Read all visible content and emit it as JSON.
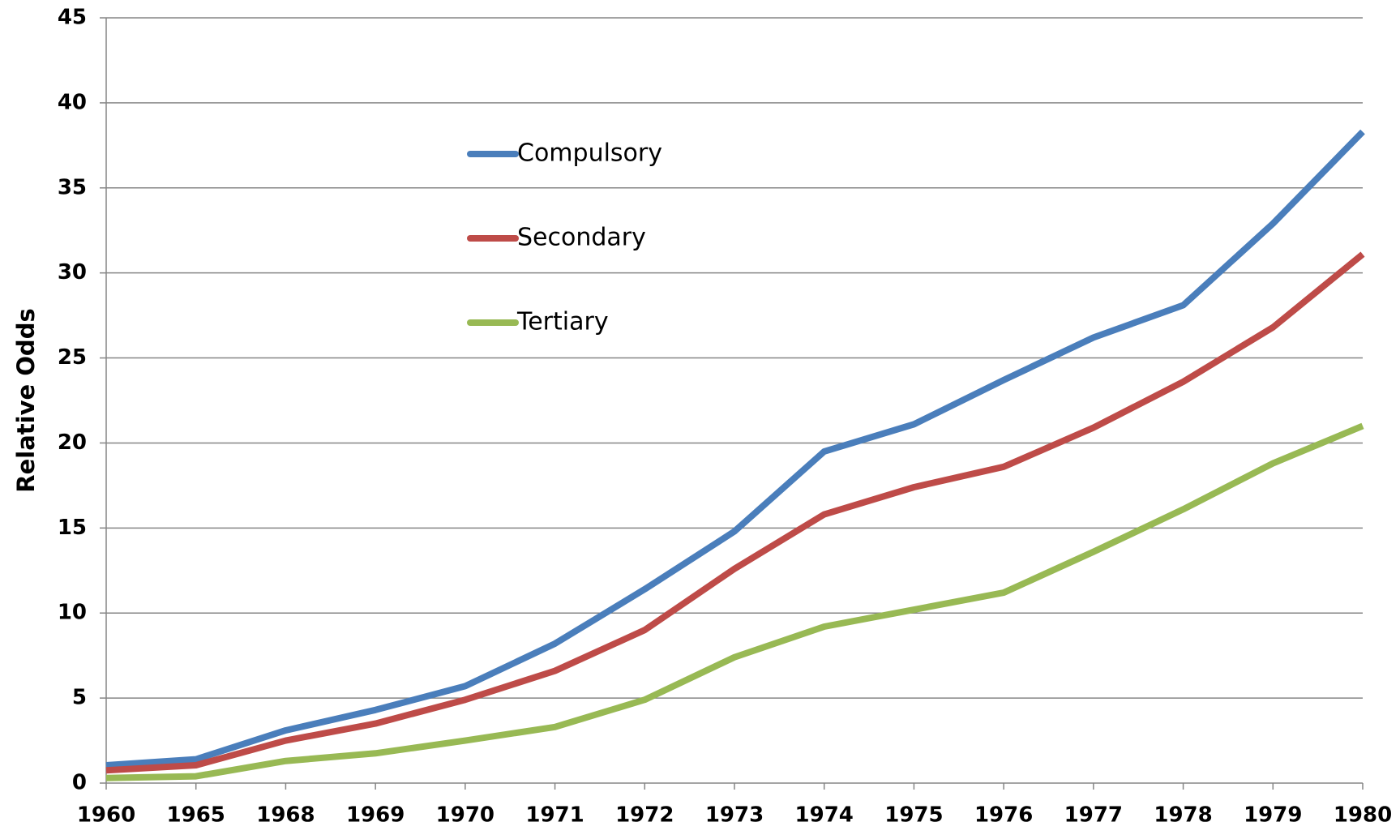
{
  "chart_data": {
    "type": "line",
    "y_label": "Relative Odds",
    "categories": [
      "1960",
      "1965",
      "1968",
      "1969",
      "1970",
      "1971",
      "1972",
      "1973",
      "1974",
      "1975",
      "1976",
      "1977",
      "1978",
      "1979",
      "1980"
    ],
    "series": [
      {
        "name": "Compulsory",
        "color": "#4a7ebb",
        "values": [
          1.05,
          1.4,
          3.1,
          4.3,
          5.7,
          8.2,
          11.4,
          14.8,
          19.5,
          21.1,
          23.7,
          26.2,
          28.1,
          32.9,
          38.3
        ]
      },
      {
        "name": "Secondary",
        "color": "#be4b48",
        "values": [
          0.75,
          1.05,
          2.5,
          3.5,
          4.9,
          6.6,
          9.0,
          12.6,
          15.8,
          17.4,
          18.6,
          20.9,
          23.6,
          26.8,
          31.1
        ]
      },
      {
        "name": "Tertiary",
        "color": "#98b954",
        "values": [
          0.3,
          0.4,
          1.3,
          1.75,
          2.5,
          3.3,
          4.9,
          7.4,
          9.2,
          10.2,
          11.2,
          13.6,
          16.1,
          18.8,
          21.0
        ]
      }
    ],
    "ylim": [
      0,
      45
    ],
    "yticks": [
      0,
      5,
      10,
      15,
      20,
      25,
      30,
      35,
      40,
      45
    ],
    "grid": true
  }
}
